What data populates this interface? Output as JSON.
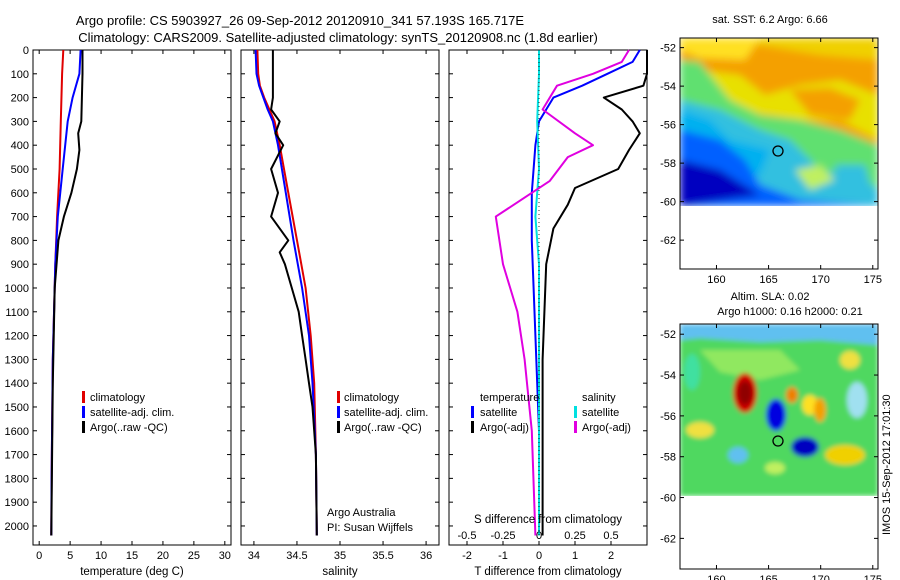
{
  "titles": {
    "line1": "Argo profile: CS 5903927_26 09-Sep-2012 20120910_341 57.193S 165.717E",
    "line2": "Climatology: CARS2009. Satellite-adjusted climatology: synTS_20120908.nc (1.8d earlier)"
  },
  "colors": {
    "climatology": "#e00000",
    "satellite": "#0000ff",
    "argo": "#000000",
    "sal_satellite": "#00e0e0",
    "sal_argo": "#e000e0"
  },
  "chart_data": [
    {
      "id": "temperature",
      "type": "line",
      "xlabel": "temperature (deg C)",
      "ylabel": "",
      "xlim": [
        -1,
        31
      ],
      "ylim": [
        2080,
        0
      ],
      "xticks": [
        "0",
        "5",
        "10",
        "15",
        "20",
        "25",
        "30"
      ],
      "yticks": [
        "0",
        "100",
        "200",
        "300",
        "400",
        "500",
        "600",
        "700",
        "800",
        "900",
        "1000",
        "1100",
        "1200",
        "1300",
        "1400",
        "1500",
        "1600",
        "1700",
        "1800",
        "1900",
        "2000"
      ],
      "legend": [
        "climatology",
        "satellite-adj. clim.",
        "Argo(..raw -QC)"
      ],
      "series": [
        {
          "name": "climatology",
          "color": "#e00000",
          "x": [
            3.9,
            3.7,
            3.5,
            3.3,
            2.9,
            2.6,
            2.2,
            2.0,
            1.95
          ],
          "y": [
            0,
            100,
            300,
            500,
            700,
            900,
            1300,
            1800,
            2040
          ]
        },
        {
          "name": "satellite-adj. clim.",
          "color": "#0000ff",
          "x": [
            6.7,
            6.5,
            5.4,
            4.6,
            3.8,
            3.0,
            2.6,
            2.2,
            2.0,
            1.95
          ],
          "y": [
            0,
            100,
            200,
            300,
            500,
            700,
            900,
            1300,
            1800,
            2040
          ]
        },
        {
          "name": "Argo(..raw -QC)",
          "color": "#000000",
          "x": [
            7.0,
            7.0,
            6.9,
            6.8,
            6.3,
            6.5,
            6.1,
            5.2,
            4.0,
            3.1,
            2.5,
            2.2,
            1.95
          ],
          "y": [
            0,
            100,
            200,
            300,
            350,
            420,
            500,
            600,
            700,
            800,
            1000,
            1400,
            2040
          ]
        }
      ]
    },
    {
      "id": "salinity",
      "type": "line",
      "xlabel": "salinity",
      "ylabel": "",
      "xlim": [
        33.85,
        36.15
      ],
      "ylim": [
        2080,
        0
      ],
      "xticks": [
        "34",
        "34.5",
        "35",
        "35.5",
        "36"
      ],
      "legend": [
        "climatology",
        "satellite-adj. clim.",
        "Argo(..raw -QC)"
      ],
      "annotations": [
        "Argo Australia",
        "PI: Susan Wijffels"
      ],
      "series": [
        {
          "name": "climatology",
          "color": "#e00000",
          "x": [
            34.04,
            34.05,
            34.07,
            34.12,
            34.18,
            34.24,
            34.3,
            34.4,
            34.5,
            34.6,
            34.66,
            34.7,
            34.72,
            34.73
          ],
          "y": [
            0,
            100,
            150,
            200,
            250,
            300,
            400,
            600,
            800,
            1000,
            1200,
            1400,
            1700,
            2040
          ]
        },
        {
          "name": "satellite-adj. clim.",
          "color": "#0000ff",
          "x": [
            34.02,
            34.03,
            34.06,
            34.11,
            34.16,
            34.22,
            34.28,
            34.37,
            34.46,
            34.56,
            34.64,
            34.68,
            34.72,
            34.73
          ],
          "y": [
            0,
            100,
            150,
            200,
            250,
            300,
            400,
            600,
            800,
            1000,
            1200,
            1400,
            1700,
            2040
          ]
        },
        {
          "name": "Argo(..raw -QC)",
          "color": "#000000",
          "x": [
            34.22,
            34.22,
            34.22,
            34.2,
            34.3,
            34.25,
            34.34,
            34.2,
            34.28,
            34.2,
            34.4,
            34.3,
            34.36,
            34.44,
            34.52,
            34.56,
            34.6,
            34.64,
            34.68,
            34.72,
            34.73
          ],
          "y": [
            0,
            100,
            200,
            250,
            300,
            350,
            400,
            500,
            600,
            700,
            800,
            850,
            900,
            1000,
            1100,
            1200,
            1300,
            1400,
            1500,
            1700,
            2040
          ]
        }
      ]
    },
    {
      "id": "difference",
      "type": "line",
      "xlabel": "T difference from climatology",
      "xlabel_top": "S difference from climatology",
      "xlim": [
        -2.5,
        3.0
      ],
      "ylim": [
        2080,
        0
      ],
      "xticks": [
        "-2",
        "-1",
        "0",
        "1",
        "2"
      ],
      "xticks_top": [
        "-0.5",
        "-0.25",
        "0",
        "0.25",
        "0.5"
      ],
      "legend_headers": [
        "temperature",
        "salinity"
      ],
      "legend": [
        "satellite",
        "Argo(-adj)",
        "satellite",
        "Argo(-adj)"
      ],
      "series": [
        {
          "name": "temperature satellite",
          "color": "#0000ff",
          "x": [
            2.8,
            2.6,
            1.9,
            1.2,
            0.4,
            0.0,
            -0.1,
            -0.2,
            -0.2,
            -0.1,
            0.0,
            0.0
          ],
          "y": [
            0,
            50,
            100,
            150,
            200,
            300,
            400,
            600,
            800,
            1200,
            1600,
            2040
          ]
        },
        {
          "name": "temperature Argo(-adj)",
          "color": "#000000",
          "x": [
            3.0,
            3.0,
            2.9,
            1.8,
            2.3,
            2.6,
            2.8,
            2.5,
            2.2,
            1.0,
            0.8,
            0.4,
            0.2,
            0.1,
            0.1
          ],
          "y": [
            0,
            100,
            150,
            200,
            250,
            300,
            350,
            420,
            500,
            580,
            650,
            750,
            900,
            1300,
            2040
          ]
        },
        {
          "name": "salinity satellite",
          "color": "#00e0e0",
          "x": [
            0.0,
            0.0,
            -0.05,
            0.0,
            -0.1,
            0.0,
            0.0,
            0.0
          ],
          "y": [
            0,
            100,
            300,
            500,
            700,
            900,
            1400,
            2040
          ]
        },
        {
          "name": "salinity Argo(-adj)",
          "color": "#e000e0",
          "x": [
            2.5,
            2.3,
            1.5,
            0.5,
            0.1,
            1.0,
            1.5,
            0.8,
            0.3,
            -1.2,
            -1.0,
            -0.6,
            -0.4,
            -0.2,
            -0.1
          ],
          "y": [
            0,
            50,
            100,
            150,
            250,
            350,
            400,
            450,
            550,
            700,
            900,
            1100,
            1300,
            1600,
            2040
          ]
        }
      ]
    },
    {
      "id": "sst_map",
      "type": "heatmap",
      "title": "sat. SST: 6.2 Argo: 6.66",
      "xticks": [
        "160",
        "165",
        "170",
        "175"
      ],
      "yticks": [
        "-52",
        "-54",
        "-56",
        "-58",
        "-60",
        "-62"
      ],
      "xlim": [
        156.5,
        175.5
      ],
      "ylim": [
        -63.5,
        -51.5
      ],
      "marker": {
        "x": 165.717,
        "y": -57.193
      }
    },
    {
      "id": "sla_map",
      "type": "heatmap",
      "title": "Altim. SLA: 0.02",
      "subtitle": "Argo h1000: 0.16 h2000: 0.21",
      "xticks": [
        "160",
        "165",
        "170",
        "175"
      ],
      "yticks": [
        "-52",
        "-54",
        "-56",
        "-58",
        "-60",
        "-62"
      ],
      "xlim": [
        156.5,
        175.5
      ],
      "ylim": [
        -63.5,
        -51.5
      ],
      "marker": {
        "x": 165.717,
        "y": -57.193
      }
    }
  ],
  "stamp": "IMOS 15-Sep-2012 17:01:30"
}
